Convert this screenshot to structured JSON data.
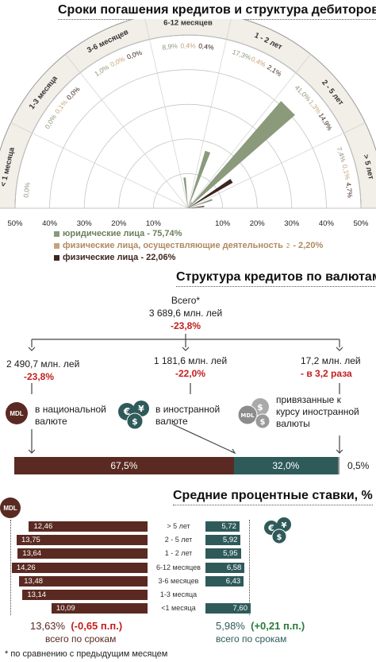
{
  "colors": {
    "legal": "#8a9a7b",
    "entrepreneurs": "#c8a27a",
    "individuals": "#3d2620",
    "mdl": "#5a2a22",
    "foreign": "#2f5a5a",
    "pegged": "#8c8c8c",
    "red": "#c41e1e"
  },
  "section1": {
    "title": "Сроки погашения кредитов и структура дебиторов",
    "axis_labels": [
      "50%",
      "40%",
      "30%",
      "20%",
      "10%",
      "10%",
      "20%",
      "30%",
      "40%",
      "50%"
    ],
    "legend": [
      {
        "label": "юридические лица - 75,74%",
        "sup": ""
      },
      {
        "label": "физические лица, осуществляющие деятельность",
        "sup": "2",
        "tail": " - 2,20%"
      },
      {
        "label": "физические лица - 22,06%",
        "sup": ""
      }
    ]
  },
  "chart_data": [
    {
      "type": "polar-bar",
      "title": "Сроки погашения кредитов и структура дебиторов",
      "categories": [
        "< 1 месяца",
        "1-3 месяца",
        "3-6 месяцев",
        "6-12 месяцев",
        "1 - 2 лет",
        "2 - 5 лет",
        "> 5 лет"
      ],
      "series": [
        {
          "name": "юридические лица - 75,74%",
          "values": [
            0.0,
            0.0,
            1.0,
            8.9,
            17.3,
            41.0,
            7.4
          ],
          "labels": [
            "0,0%",
            "0,0%",
            "1,0%",
            "8,9%",
            "17,3%",
            "41,0%",
            "7,4%"
          ]
        },
        {
          "name": "физические лица, осуществляющие деятельность - 2,20%",
          "values": [
            0.0,
            0.1,
            0.0,
            0.4,
            0.4,
            1.3,
            0.1
          ],
          "labels": [
            "",
            "0,1%",
            "0,0%",
            "0,4%",
            "0,4%",
            "1,3%",
            "0,1%"
          ]
        },
        {
          "name": "физические лица - 22,06%",
          "values": [
            0.0,
            0.0,
            0.0,
            0.4,
            2.1,
            14.9,
            4.7
          ],
          "labels": [
            "",
            "0,0%",
            "0,0%",
            "0,4%",
            "2,1%",
            "14,9%",
            "4,7%"
          ]
        }
      ],
      "rlim": [
        0,
        50
      ]
    },
    {
      "type": "bar",
      "title": "Структура кредитов по валютам",
      "categories": [
        "в национальной валюте",
        "в иностранной валюте",
        "привязанные к курсу иностранной валюты"
      ],
      "values": [
        67.5,
        32.0,
        0.5
      ],
      "labels": [
        "67,5%",
        "32,0%",
        "0,5%"
      ],
      "stacked": true
    },
    {
      "type": "bar",
      "title": "Средние процентные ставки, %",
      "categories": [
        "> 5 лет",
        "2 - 5 лет",
        "1 - 2 лет",
        "6-12 месяцев",
        "3-6 месяцев",
        "1-3 месяца",
        "<1 месяца"
      ],
      "series": [
        {
          "name": "MDL",
          "values": [
            12.46,
            13.75,
            13.64,
            14.26,
            13.48,
            13.14,
            10.09
          ],
          "labels": [
            "12,46",
            "13,75",
            "13,64",
            "14,26",
            "13,48",
            "13,14",
            "10,09"
          ]
        },
        {
          "name": "foreign",
          "values": [
            5.72,
            5.92,
            5.95,
            6.58,
            6.43,
            null,
            7.6
          ],
          "labels": [
            "5,72",
            "5,92",
            "5,95",
            "6,58",
            "6,43",
            "",
            "7,60"
          ]
        }
      ]
    }
  ],
  "section2": {
    "title": "Структура кредитов по валютам",
    "total_label": "Всего*",
    "total_value": "3 689,6 млн. лей",
    "total_change": "-23,8%",
    "nat_value": "2 490,7 млн. лей",
    "nat_change": "-23,8%",
    "nat_label_1": "в национальной",
    "nat_label_2": "валюте",
    "for_value": "1 181,6 млн. лей",
    "for_change": "-22,0%",
    "for_label_1": "в  иностранной",
    "for_label_2": "валюте",
    "peg_value": "17,2 млн. лей",
    "peg_change": "- в 3,2 раза",
    "peg_label_1": "привязанные к",
    "peg_label_2": "курсу иностранной",
    "peg_label_3": "валюты",
    "mdl_badge": "MDL"
  },
  "section3": {
    "title": "Средние процентные ставки, %",
    "mdl_badge": "MDL",
    "mdl_total": "13,63%",
    "mdl_change": "(-0,65 п.п.)",
    "mdl_caption": "всего по срокам",
    "for_total": "5,98%",
    "for_change": "(+0,21 п.п.)",
    "for_caption": "всего по срокам",
    "footnote": "* по сравнению с предыдущим месяцем"
  }
}
